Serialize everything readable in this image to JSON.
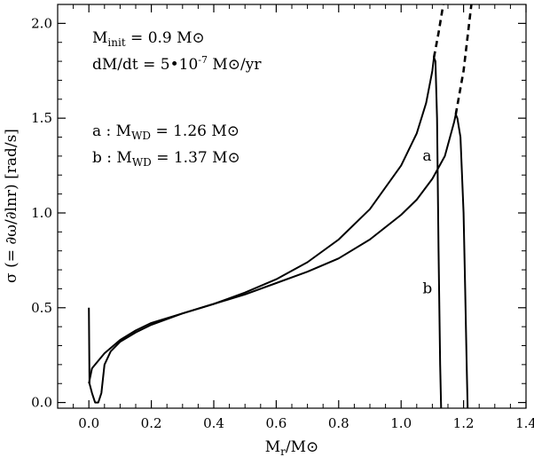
{
  "chart_data": {
    "type": "line",
    "xlim": [
      -0.1,
      1.4
    ],
    "ylim": [
      -0.03,
      2.1
    ],
    "x_ticks": [
      0.0,
      0.2,
      0.4,
      0.6,
      0.8,
      1.0,
      1.2,
      1.4
    ],
    "y_ticks": [
      0.0,
      0.5,
      1.0,
      1.5,
      2.0
    ],
    "x_tick_labels": [
      "0.0",
      "0.2",
      "0.4",
      "0.6",
      "0.8",
      "1.0",
      "1.2",
      "1.4"
    ],
    "y_tick_labels": [
      "0.0",
      "0.5",
      "1.0",
      "1.5",
      "2.0"
    ],
    "xlabel": {
      "main": "M",
      "sub": "r",
      "tail": "/M⊙"
    },
    "ylabel": "σ  (= ∂ω/∂lnr) [rad/s]",
    "grid": false,
    "annotations": {
      "line1": {
        "main": "M",
        "sub": "init",
        "tail": " = 0.9 M⊙"
      },
      "line2": {
        "main": "dM/dt = 5•10",
        "sup": "-7",
        "tail": " M⊙/yr"
      },
      "line3": {
        "main": "a : M",
        "sub": "WD",
        "tail": " = 1.26 M⊙"
      },
      "line4": {
        "main": "b : M",
        "sub": "WD",
        "tail": " = 1.37 M⊙"
      }
    },
    "series": [
      {
        "name": "a",
        "solid": [
          [
            0.0,
            0.5
          ],
          [
            0.002,
            0.1
          ],
          [
            0.01,
            0.05
          ],
          [
            0.02,
            0.0
          ],
          [
            0.03,
            0.0
          ],
          [
            0.04,
            0.05
          ],
          [
            0.05,
            0.2
          ],
          [
            0.07,
            0.27
          ],
          [
            0.1,
            0.32
          ],
          [
            0.15,
            0.37
          ],
          [
            0.2,
            0.41
          ],
          [
            0.3,
            0.47
          ],
          [
            0.4,
            0.52
          ],
          [
            0.5,
            0.58
          ],
          [
            0.6,
            0.65
          ],
          [
            0.7,
            0.74
          ],
          [
            0.8,
            0.86
          ],
          [
            0.9,
            1.02
          ],
          [
            1.0,
            1.25
          ],
          [
            1.05,
            1.42
          ],
          [
            1.08,
            1.58
          ],
          [
            1.1,
            1.75
          ],
          [
            1.105,
            1.82
          ],
          [
            1.11,
            1.8
          ],
          [
            1.115,
            1.5
          ],
          [
            1.12,
            0.8
          ],
          [
            1.125,
            0.2
          ],
          [
            1.128,
            -0.03
          ]
        ],
        "dashed": [
          [
            1.105,
            1.82
          ],
          [
            1.12,
            1.95
          ],
          [
            1.135,
            2.1
          ]
        ]
      },
      {
        "name": "b",
        "solid": [
          [
            0.0,
            0.1
          ],
          [
            0.01,
            0.18
          ],
          [
            0.02,
            0.2
          ],
          [
            0.05,
            0.26
          ],
          [
            0.1,
            0.33
          ],
          [
            0.15,
            0.38
          ],
          [
            0.2,
            0.42
          ],
          [
            0.3,
            0.47
          ],
          [
            0.4,
            0.52
          ],
          [
            0.5,
            0.57
          ],
          [
            0.6,
            0.63
          ],
          [
            0.7,
            0.69
          ],
          [
            0.8,
            0.76
          ],
          [
            0.9,
            0.86
          ],
          [
            1.0,
            0.99
          ],
          [
            1.05,
            1.07
          ],
          [
            1.1,
            1.18
          ],
          [
            1.14,
            1.3
          ],
          [
            1.17,
            1.48
          ],
          [
            1.175,
            1.52
          ],
          [
            1.18,
            1.5
          ],
          [
            1.19,
            1.4
          ],
          [
            1.2,
            1.0
          ],
          [
            1.205,
            0.6
          ],
          [
            1.21,
            0.2
          ],
          [
            1.213,
            -0.03
          ]
        ],
        "dashed": [
          [
            1.175,
            1.52
          ],
          [
            1.2,
            1.75
          ],
          [
            1.225,
            2.1
          ]
        ]
      }
    ],
    "curve_labels": [
      {
        "text": "a",
        "x": 1.08,
        "y": 1.3
      },
      {
        "text": "b",
        "x": 1.08,
        "y": 0.6
      }
    ]
  }
}
